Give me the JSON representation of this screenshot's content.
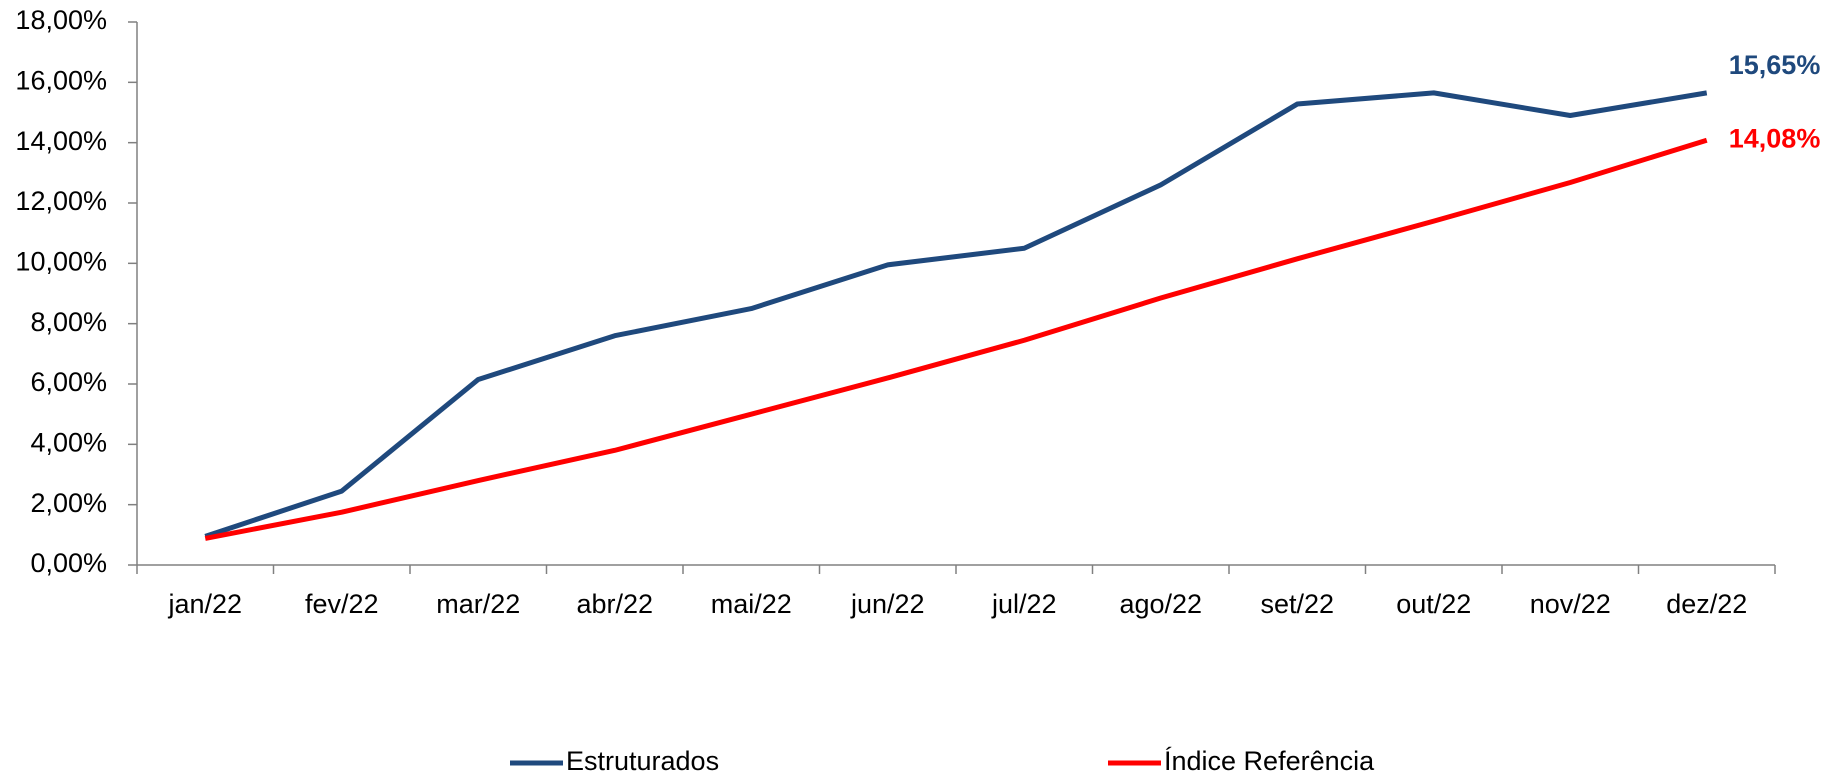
{
  "chart_data": {
    "type": "line",
    "categories": [
      "jan/22",
      "fev/22",
      "mar/22",
      "abr/22",
      "mai/22",
      "jun/22",
      "jul/22",
      "ago/22",
      "set/22",
      "out/22",
      "nov/22",
      "dez/22"
    ],
    "series": [
      {
        "name": "Estruturados",
        "color": "#1f497d",
        "values": [
          0.95,
          2.45,
          6.15,
          7.6,
          8.5,
          9.95,
          10.5,
          12.6,
          15.28,
          15.65,
          14.9,
          15.65
        ],
        "value_labels": [
          null,
          null,
          null,
          null,
          null,
          null,
          null,
          null,
          null,
          null,
          null,
          "15,65%"
        ]
      },
      {
        "name": "Índice Referência",
        "color": "#ff0000",
        "values": [
          0.88,
          1.75,
          2.8,
          3.8,
          5.0,
          6.2,
          7.45,
          8.85,
          10.15,
          11.4,
          12.68,
          14.08
        ],
        "value_labels": [
          null,
          null,
          null,
          null,
          null,
          null,
          null,
          null,
          null,
          null,
          null,
          "14,08%"
        ]
      }
    ],
    "ylim": [
      0,
      18
    ],
    "yticks": [
      {
        "value": 0,
        "label": "0,00%"
      },
      {
        "value": 2,
        "label": "2,00%"
      },
      {
        "value": 4,
        "label": "4,00%"
      },
      {
        "value": 6,
        "label": "6,00%"
      },
      {
        "value": 8,
        "label": "8,00%"
      },
      {
        "value": 10,
        "label": "10,00%"
      },
      {
        "value": 12,
        "label": "12,00%"
      },
      {
        "value": 14,
        "label": "14,00%"
      },
      {
        "value": 16,
        "label": "16,00%"
      },
      {
        "value": 18,
        "label": "18,00%"
      }
    ],
    "grid": false,
    "legend": "bottom"
  }
}
